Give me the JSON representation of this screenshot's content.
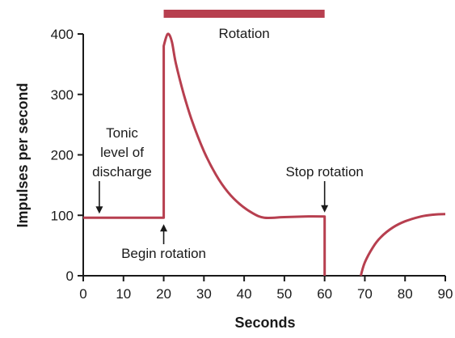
{
  "chart_data": {
    "type": "line",
    "xlabel": "Seconds",
    "ylabel": "Impulses per second",
    "xlim": [
      0,
      90
    ],
    "ylim": [
      0,
      400
    ],
    "x_ticks": [
      0,
      10,
      20,
      30,
      40,
      50,
      60,
      70,
      80,
      90
    ],
    "y_ticks": [
      0,
      100,
      200,
      300,
      400
    ],
    "grid": false,
    "line_color": "#b73f4f",
    "series": [
      {
        "segments": [
          [
            [
              0,
              96
            ],
            [
              20,
              96
            ],
            [
              20,
              380
            ],
            [
              21,
              400
            ],
            [
              22,
              388
            ],
            [
              23,
              352
            ],
            [
              25,
              300
            ],
            [
              27,
              257
            ],
            [
              30,
              206
            ],
            [
              33,
              167
            ],
            [
              36,
              138
            ],
            [
              39,
              118
            ],
            [
              42,
              104
            ],
            [
              45,
              96
            ],
            [
              50,
              97
            ],
            [
              55,
              98
            ],
            [
              60,
              98
            ],
            [
              60,
              0
            ]
          ],
          [
            [
              69,
              0
            ],
            [
              70,
              22
            ],
            [
              72,
              47
            ],
            [
              74,
              64
            ],
            [
              77,
              80
            ],
            [
              80,
              90
            ],
            [
              84,
              98
            ],
            [
              87,
              101
            ],
            [
              90,
              102
            ]
          ]
        ]
      }
    ],
    "bar": {
      "label": "Rotation",
      "x_start": 20,
      "x_end": 60
    },
    "annotations": [
      {
        "id": "tonic",
        "lines": [
          "Tonic",
          "level of",
          "discharge"
        ],
        "x": 4,
        "y": 96
      },
      {
        "id": "begin",
        "text": "Begin rotation",
        "x": 20,
        "y": 96
      },
      {
        "id": "stop",
        "text": "Stop rotation",
        "x": 60,
        "y": 98
      }
    ]
  }
}
